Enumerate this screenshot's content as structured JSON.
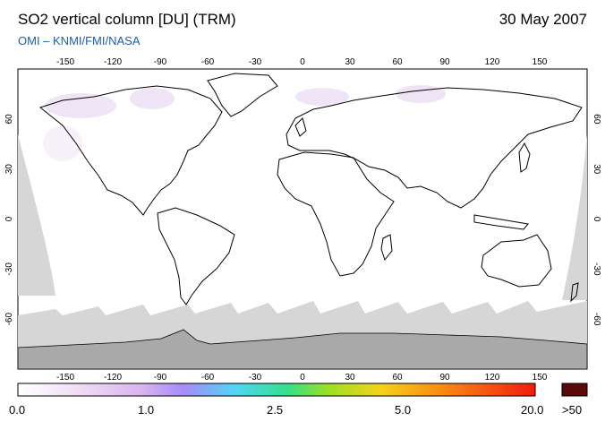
{
  "header": {
    "title": "SO2 vertical column [DU] (TRM)",
    "date": "30 May 2007",
    "credit": "OMI  –  KNMI/FMI/NASA",
    "credit_color": "#1a5fb0"
  },
  "map": {
    "projection": "equirectangular",
    "lon_range": [
      -180,
      180
    ],
    "lat_range": [
      -90,
      90
    ],
    "lon_ticks": [
      -150,
      -120,
      -90,
      -60,
      -30,
      0,
      30,
      60,
      90,
      120,
      150
    ],
    "lat_ticks": [
      60,
      30,
      0,
      -30,
      -60
    ],
    "colors": {
      "ocean_land": "#ffffff",
      "no_data": "#d6d6d6",
      "antarctica": "#a9a9a9",
      "coastline": "#000000",
      "low_so2_tint": "#e6d3f0"
    }
  },
  "colorbar": {
    "colors": [
      "#ffffff",
      "#f0dcf5",
      "#d9b4f0",
      "#a78bfa",
      "#4fd6f7",
      "#34e08a",
      "#9be024",
      "#f6d21a",
      "#fa8a14",
      "#f01c10"
    ],
    "overflow_color": "#5a0a0a",
    "labels": [
      "0.0",
      "1.0",
      "2.5",
      "5.0",
      "20.0"
    ],
    "overflow_label": ">50"
  }
}
